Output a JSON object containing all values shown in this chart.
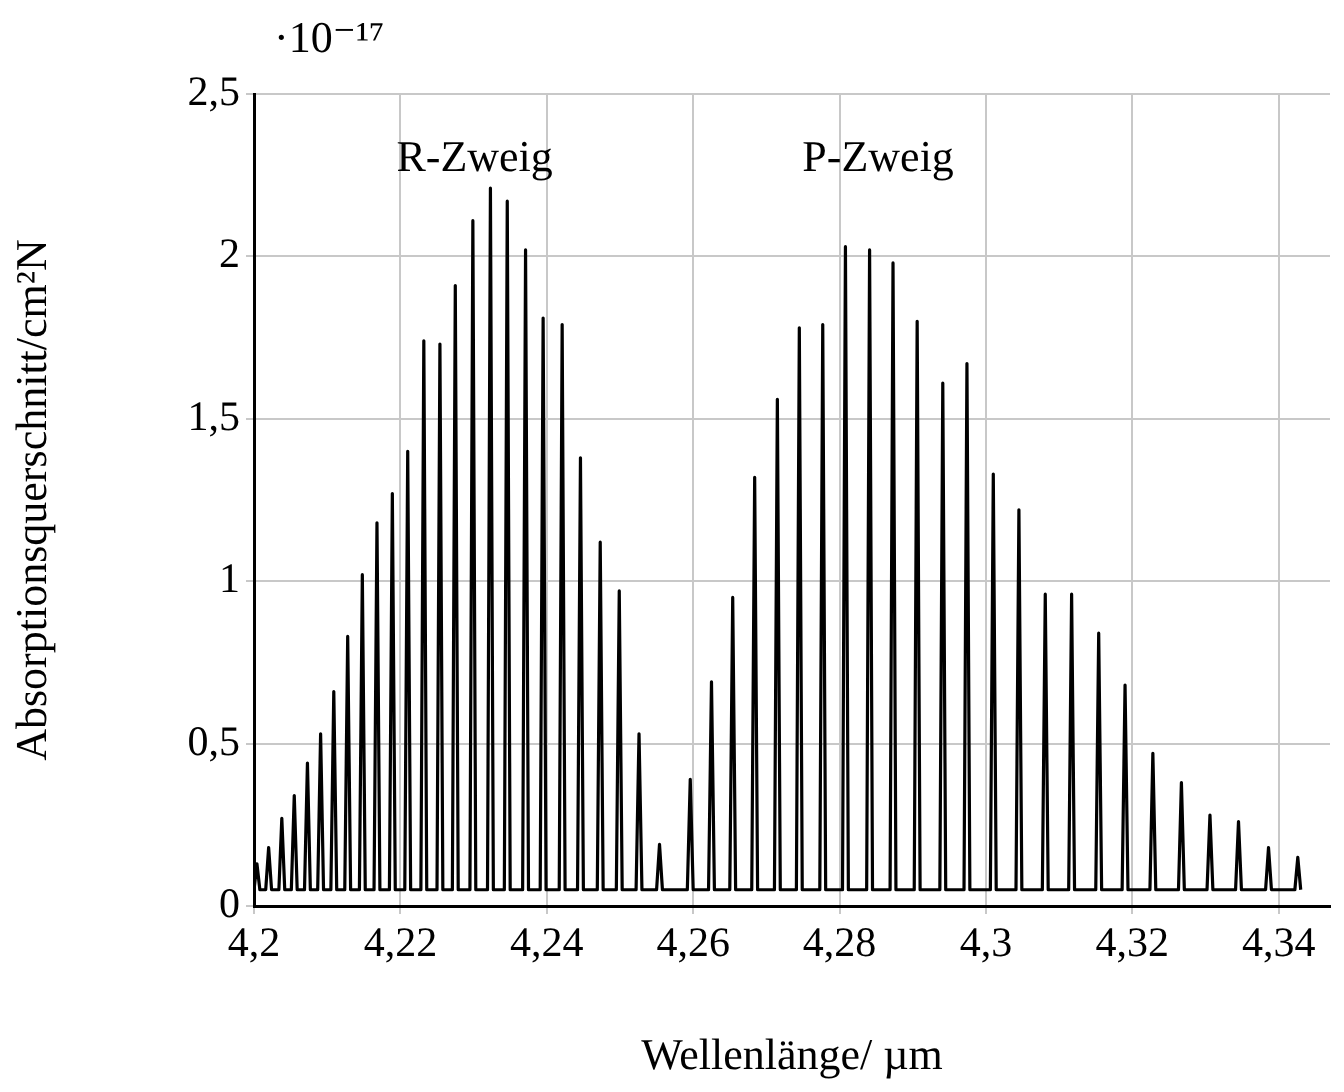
{
  "chart_data": {
    "type": "line",
    "xlabel": "Wellenlänge/ µm",
    "ylabel": "Absorptionsquerschnitt/cm²N",
    "annotations": [
      "·10⁻¹⁷",
      "R-Zweig",
      "P-Zweig"
    ],
    "xlim": [
      4.2,
      4.347
    ],
    "ylim": [
      0,
      2.5
    ],
    "xticks": [
      {
        "value": 4.2,
        "label": "4,2"
      },
      {
        "value": 4.22,
        "label": "4,22"
      },
      {
        "value": 4.24,
        "label": "4,24"
      },
      {
        "value": 4.26,
        "label": "4,26"
      },
      {
        "value": 4.28,
        "label": "4,28"
      },
      {
        "value": 4.3,
        "label": "4,3"
      },
      {
        "value": 4.32,
        "label": "4,32"
      },
      {
        "value": 4.34,
        "label": "4,34"
      }
    ],
    "yticks": [
      0,
      {
        "value": 0.5,
        "label": "0,5"
      },
      1,
      {
        "value": 1.5,
        "label": "1,5"
      },
      2,
      {
        "value": 2.5,
        "label": "2,5"
      }
    ],
    "grid": true,
    "legend": false,
    "marker": "none",
    "line_style": "solid",
    "series": [
      {
        "color": "#000000",
        "x": [
          4.2,
          4.2004,
          4.2008,
          4.2016,
          4.202,
          4.2024,
          4.2034,
          4.2038,
          4.2042,
          4.2051,
          4.2055,
          4.2059,
          4.2069,
          4.2073,
          4.2077,
          4.2087,
          4.2091,
          4.2095,
          4.2105,
          4.2109,
          4.2113,
          4.2124,
          4.2128,
          4.2132,
          4.2144,
          4.2148,
          4.2152,
          4.2164,
          4.2168,
          4.2172,
          4.2185,
          4.2189,
          4.2193,
          4.2206,
          4.221,
          4.2214,
          4.2228,
          4.2232,
          4.2236,
          4.225,
          4.2254,
          4.2258,
          4.2271,
          4.2275,
          4.2279,
          4.2295,
          4.2299,
          4.2303,
          4.2319,
          4.2323,
          4.2327,
          4.2342,
          4.2346,
          4.235,
          4.2367,
          4.2371,
          4.2375,
          4.2391,
          4.2395,
          4.2399,
          4.2417,
          4.2421,
          4.2425,
          4.2442,
          4.2446,
          4.245,
          4.2469,
          4.2473,
          4.2477,
          4.2495,
          4.2499,
          4.2503,
          4.2522,
          4.2526,
          4.253,
          4.255,
          4.2554,
          4.2558,
          4.2592,
          4.2596,
          4.26,
          4.2621,
          4.2625,
          4.2629,
          4.265,
          4.2654,
          4.2658,
          4.268,
          4.2684,
          4.2688,
          4.2711,
          4.2715,
          4.2719,
          4.2741,
          4.2745,
          4.2749,
          4.2773,
          4.2777,
          4.2781,
          4.2804,
          4.2808,
          4.2812,
          4.2837,
          4.2841,
          4.2845,
          4.2869,
          4.2873,
          4.2877,
          4.2902,
          4.2906,
          4.291,
          4.2937,
          4.2941,
          4.2945,
          4.297,
          4.2974,
          4.2978,
          4.3006,
          4.301,
          4.3014,
          4.3041,
          4.3045,
          4.3049,
          4.3077,
          4.3081,
          4.3085,
          4.3113,
          4.3117,
          4.3121,
          4.315,
          4.3154,
          4.3158,
          4.3186,
          4.319,
          4.3194,
          4.3224,
          4.3228,
          4.3232,
          4.3263,
          4.3267,
          4.3271,
          4.3302,
          4.3306,
          4.331,
          4.3341,
          4.3345,
          4.3349,
          4.3382,
          4.3386,
          4.339,
          4.3422,
          4.3426,
          4.343
        ],
        "values": [
          0.05,
          0.13,
          0.05,
          0.05,
          0.18,
          0.05,
          0.05,
          0.27,
          0.05,
          0.05,
          0.34,
          0.05,
          0.05,
          0.44,
          0.05,
          0.05,
          0.53,
          0.05,
          0.05,
          0.66,
          0.05,
          0.05,
          0.83,
          0.05,
          0.05,
          1.02,
          0.05,
          0.05,
          1.18,
          0.05,
          0.05,
          1.27,
          0.05,
          0.05,
          1.4,
          0.05,
          0.05,
          1.74,
          0.05,
          0.05,
          1.73,
          0.05,
          0.05,
          1.91,
          0.05,
          0.05,
          2.11,
          0.05,
          0.05,
          2.21,
          0.05,
          0.05,
          2.17,
          0.05,
          0.05,
          2.02,
          0.05,
          0.05,
          1.81,
          0.05,
          0.05,
          1.79,
          0.05,
          0.05,
          1.38,
          0.05,
          0.05,
          1.12,
          0.05,
          0.05,
          0.97,
          0.05,
          0.05,
          0.53,
          0.05,
          0.05,
          0.19,
          0.05,
          0.05,
          0.39,
          0.05,
          0.05,
          0.69,
          0.05,
          0.05,
          0.95,
          0.05,
          0.05,
          1.32,
          0.05,
          0.05,
          1.56,
          0.05,
          0.05,
          1.78,
          0.05,
          0.05,
          1.79,
          0.05,
          0.05,
          2.03,
          0.05,
          0.05,
          2.02,
          0.05,
          0.05,
          1.98,
          0.05,
          0.05,
          1.8,
          0.05,
          0.05,
          1.61,
          0.05,
          0.05,
          1.67,
          0.05,
          0.05,
          1.33,
          0.05,
          0.05,
          1.22,
          0.05,
          0.05,
          0.96,
          0.05,
          0.05,
          0.96,
          0.05,
          0.05,
          0.84,
          0.05,
          0.05,
          0.68,
          0.05,
          0.05,
          0.47,
          0.05,
          0.05,
          0.38,
          0.05,
          0.05,
          0.28,
          0.05,
          0.05,
          0.26,
          0.05,
          0.05,
          0.18,
          0.05,
          0.05,
          0.15,
          0.05
        ]
      }
    ]
  }
}
